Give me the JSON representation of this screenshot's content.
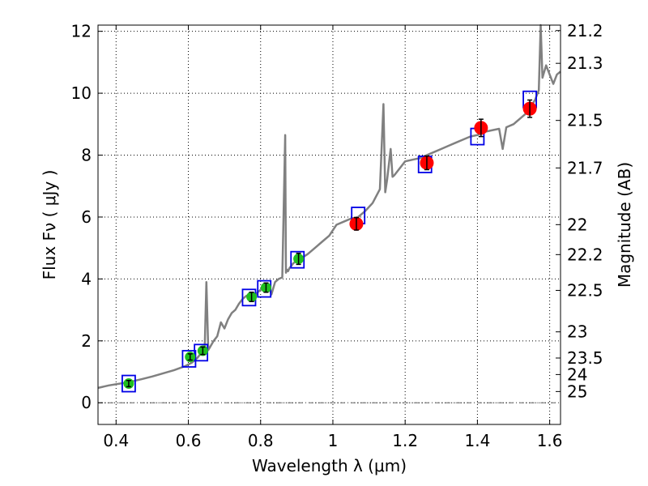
{
  "chart_data": {
    "type": "scatter",
    "title": "",
    "xlabel": "Wavelength  λ (μm)",
    "ylabel": "Flux  Fν  ( μJy )",
    "y2label": "Magnitude (AB)",
    "xlim": [
      0.35,
      1.63
    ],
    "ylim": [
      -0.7,
      12.2
    ],
    "grid": true,
    "x_ticks": [
      {
        "value": 0.4,
        "label": "0.4"
      },
      {
        "value": 0.6,
        "label": "0.6"
      },
      {
        "value": 0.8,
        "label": "0.8"
      },
      {
        "value": 1.0,
        "label": "1"
      },
      {
        "value": 1.2,
        "label": "1.2"
      },
      {
        "value": 1.4,
        "label": "1.4"
      },
      {
        "value": 1.6,
        "label": "1.6"
      }
    ],
    "y_ticks": [
      {
        "value": 0,
        "label": "0"
      },
      {
        "value": 2,
        "label": "2"
      },
      {
        "value": 4,
        "label": "4"
      },
      {
        "value": 6,
        "label": "6"
      },
      {
        "value": 8,
        "label": "8"
      },
      {
        "value": 10,
        "label": "10"
      },
      {
        "value": 12,
        "label": "12"
      }
    ],
    "mag_ticks": [
      {
        "value": 21.2,
        "label": "21.2"
      },
      {
        "value": 21.3,
        "label": "21.3"
      },
      {
        "value": 21.5,
        "label": "21.5"
      },
      {
        "value": 21.7,
        "label": "21.7"
      },
      {
        "value": 22,
        "label": "22"
      },
      {
        "value": 22.2,
        "label": "22.2"
      },
      {
        "value": 22.5,
        "label": "22.5"
      },
      {
        "value": 23,
        "label": "23"
      },
      {
        "value": 23.5,
        "label": "23.5"
      },
      {
        "value": 24,
        "label": "24"
      },
      {
        "value": 25,
        "label": "25"
      }
    ],
    "colors": {
      "spectrum": "#808080",
      "optical_points": "#1fbf1f",
      "nir_points": "#ff0000",
      "model_boxes": "#0000e6",
      "zero_line": "#666666"
    },
    "spectrum": {
      "x": [
        0.35,
        0.38,
        0.41,
        0.44,
        0.47,
        0.5,
        0.53,
        0.56,
        0.59,
        0.61,
        0.625,
        0.635,
        0.645,
        0.65,
        0.655,
        0.66,
        0.67,
        0.68,
        0.69,
        0.7,
        0.71,
        0.72,
        0.73,
        0.74,
        0.75,
        0.76,
        0.77,
        0.78,
        0.79,
        0.8,
        0.81,
        0.82,
        0.83,
        0.84,
        0.85,
        0.86,
        0.868,
        0.87,
        0.873,
        0.876,
        0.88,
        0.89,
        0.9,
        0.91,
        0.93,
        0.95,
        0.97,
        0.99,
        1.01,
        1.03,
        1.05,
        1.07,
        1.09,
        1.11,
        1.13,
        1.14,
        1.145,
        1.15,
        1.16,
        1.165,
        1.17,
        1.18,
        1.2,
        1.22,
        1.24,
        1.26,
        1.28,
        1.3,
        1.32,
        1.34,
        1.36,
        1.38,
        1.4,
        1.42,
        1.44,
        1.46,
        1.47,
        1.48,
        1.5,
        1.52,
        1.54,
        1.56,
        1.57,
        1.575,
        1.58,
        1.59,
        1.6,
        1.61,
        1.62,
        1.63
      ],
      "y": [
        0.48,
        0.56,
        0.62,
        0.68,
        0.76,
        0.85,
        0.95,
        1.05,
        1.18,
        1.3,
        1.45,
        1.6,
        1.62,
        3.9,
        1.7,
        1.8,
        2.0,
        2.15,
        2.6,
        2.4,
        2.7,
        2.9,
        3.0,
        3.2,
        3.35,
        3.45,
        3.5,
        3.3,
        3.55,
        3.65,
        3.75,
        3.85,
        3.5,
        3.9,
        4.0,
        4.05,
        8.65,
        4.2,
        4.3,
        4.25,
        4.35,
        4.5,
        4.6,
        4.65,
        4.8,
        5.0,
        5.2,
        5.4,
        5.75,
        5.85,
        5.95,
        6.0,
        6.2,
        6.45,
        6.9,
        9.65,
        6.8,
        7.2,
        8.2,
        7.3,
        7.35,
        7.5,
        7.8,
        7.85,
        7.9,
        8.0,
        8.1,
        8.2,
        8.3,
        8.4,
        8.5,
        8.6,
        8.65,
        8.75,
        8.8,
        8.85,
        8.2,
        8.9,
        9.0,
        9.2,
        9.4,
        9.8,
        10.1,
        12.2,
        10.5,
        10.9,
        10.6,
        10.3,
        10.6,
        10.7
      ]
    },
    "series": [
      {
        "marker": "circle",
        "color": "#1fbf1f",
        "x": [
          0.435,
          0.605,
          0.64,
          0.775,
          0.815,
          0.905
        ],
        "y": [
          0.62,
          1.48,
          1.68,
          3.42,
          3.72,
          4.65
        ],
        "yerr": [
          0.1,
          0.1,
          0.12,
          0.15,
          0.15,
          0.18
        ]
      },
      {
        "marker": "circle",
        "color": "#ff0000",
        "x": [
          1.065,
          1.26,
          1.41,
          1.545
        ],
        "y": [
          5.78,
          7.75,
          8.88,
          9.5
        ],
        "yerr": [
          0.2,
          0.22,
          0.28,
          0.28
        ]
      },
      {
        "marker": "square",
        "color": "#0000e6",
        "x": [
          0.435,
          0.602,
          0.635,
          0.768,
          0.81,
          0.902,
          1.07,
          1.255,
          1.4,
          1.545
        ],
        "y": [
          0.62,
          1.42,
          1.62,
          3.4,
          3.68,
          4.62,
          6.05,
          7.7,
          8.6,
          9.8
        ]
      }
    ]
  }
}
